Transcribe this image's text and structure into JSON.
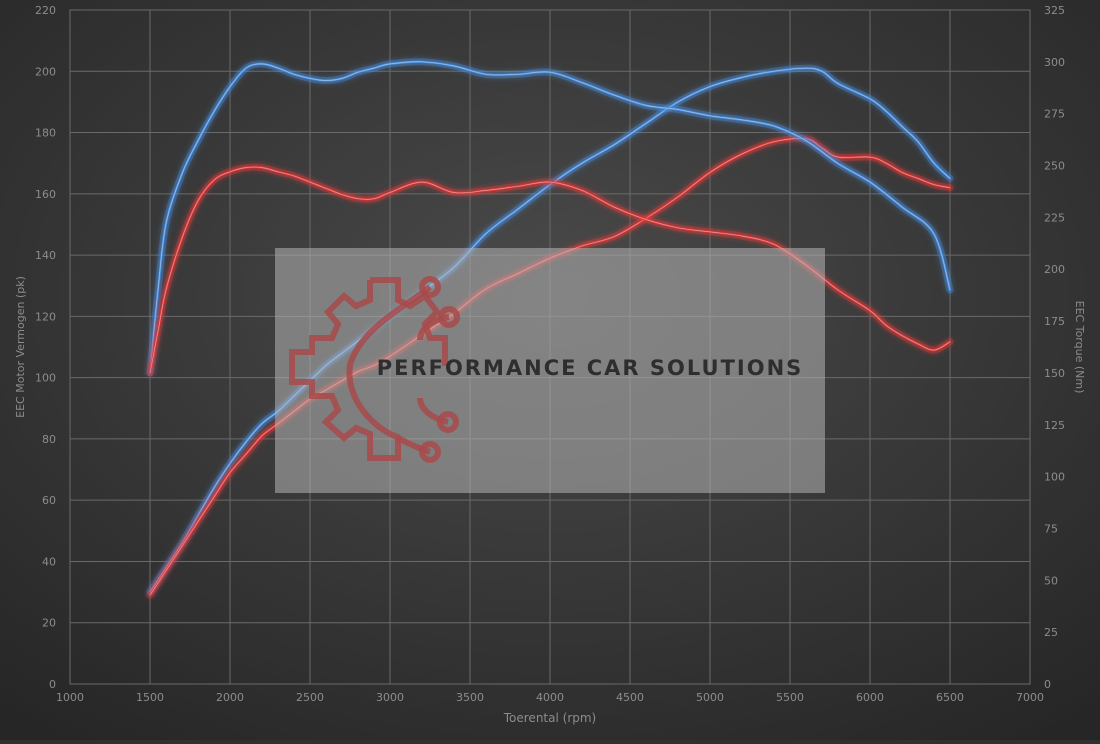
{
  "chart_data": {
    "type": "line",
    "title": "",
    "xlabel": "Toerental (rpm)",
    "ylabel": "EEC Motor Vermogen (pk)",
    "y2label": "EEC Torque (Nm)",
    "xlim": [
      1000,
      7000
    ],
    "ylim": [
      0,
      220
    ],
    "y2lim": [
      0,
      325
    ],
    "x_ticks": [
      "1000",
      "1500",
      "2000",
      "2500",
      "3000",
      "3500",
      "4000",
      "4500",
      "5000",
      "5500",
      "6000",
      "6500",
      "7000"
    ],
    "y_ticks": [
      "0",
      "20",
      "40",
      "60",
      "80",
      "100",
      "120",
      "140",
      "160",
      "180",
      "200",
      "220"
    ],
    "y2_ticks": [
      "0",
      "25",
      "50",
      "75",
      "100",
      "125",
      "150",
      "175",
      "200",
      "225",
      "250",
      "275",
      "300",
      "325"
    ],
    "grid": true,
    "legend": "none",
    "series": [
      {
        "axis": "left",
        "color": "#4a8fe0",
        "x": [
          1500,
          1600,
          1700,
          1800,
          1900,
          2000,
          2100,
          2200,
          2300,
          2400,
          2500,
          2600,
          2700,
          2800,
          2900,
          3000,
          3200,
          3400,
          3600,
          3800,
          4000,
          4200,
          4400,
          4600,
          4800,
          5000,
          5200,
          5400,
          5600,
          5700,
          5800,
          6000,
          6100,
          6200,
          6300,
          6400,
          6500
        ],
        "values": [
          30,
          38,
          46,
          55,
          64,
          72,
          79,
          85,
          89,
          94,
          99,
          104,
          108,
          112,
          116,
          120,
          128,
          136,
          147,
          155,
          163,
          170,
          176,
          183,
          190,
          195,
          198,
          200,
          201,
          200,
          196,
          191,
          187,
          182,
          177,
          170,
          165
        ]
      },
      {
        "axis": "left",
        "color": "#e23b3b",
        "x": [
          1500,
          1600,
          1700,
          1800,
          1900,
          2000,
          2100,
          2200,
          2300,
          2400,
          2500,
          2600,
          2700,
          2800,
          2900,
          3000,
          3200,
          3400,
          3600,
          3800,
          4000,
          4200,
          4400,
          4600,
          4800,
          5000,
          5200,
          5400,
          5600,
          5700,
          5800,
          6000,
          6100,
          6200,
          6300,
          6400,
          6500
        ],
        "values": [
          29,
          37,
          45,
          53,
          61,
          69,
          75,
          81,
          85,
          89,
          93,
          96,
          99,
          102,
          104,
          107,
          114,
          121,
          129,
          134,
          139,
          143,
          146,
          152,
          159,
          167,
          173,
          177,
          178,
          175,
          172,
          172,
          170,
          167,
          165,
          163,
          162
        ]
      },
      {
        "axis": "right",
        "color": "#4a8fe0",
        "x": [
          1500,
          1550,
          1600,
          1700,
          1800,
          1900,
          2000,
          2100,
          2200,
          2300,
          2400,
          2500,
          2600,
          2700,
          2800,
          2900,
          3000,
          3200,
          3400,
          3600,
          3800,
          4000,
          4200,
          4400,
          4600,
          4800,
          5000,
          5200,
          5400,
          5600,
          5800,
          6000,
          6200,
          6400,
          6500
        ],
        "values": [
          150,
          190,
          222,
          246,
          262,
          276,
          288,
          297,
          299,
          297,
          294,
          292,
          291,
          292,
          295,
          297,
          299,
          300,
          298,
          294,
          294,
          295,
          290,
          284,
          279,
          277,
          274,
          272,
          269,
          262,
          251,
          242,
          230,
          217,
          190
        ]
      },
      {
        "axis": "right",
        "color": "#e23b3b",
        "x": [
          1500,
          1550,
          1600,
          1700,
          1800,
          1900,
          2000,
          2100,
          2200,
          2300,
          2400,
          2500,
          2600,
          2700,
          2800,
          2900,
          3000,
          3200,
          3400,
          3600,
          3800,
          4000,
          4200,
          4400,
          4600,
          4800,
          5000,
          5200,
          5400,
          5600,
          5800,
          6000,
          6100,
          6200,
          6300,
          6400,
          6500
        ],
        "values": [
          150,
          170,
          190,
          215,
          233,
          243,
          247,
          249,
          249,
          247,
          245,
          242,
          239,
          236,
          234,
          234,
          237,
          242,
          237,
          238,
          240,
          242,
          238,
          230,
          224,
          220,
          218,
          216,
          212,
          202,
          190,
          180,
          173,
          168,
          164,
          161,
          165
        ]
      }
    ]
  },
  "watermark": {
    "text": "PERFORMANCE CAR SOLUTIONS"
  }
}
